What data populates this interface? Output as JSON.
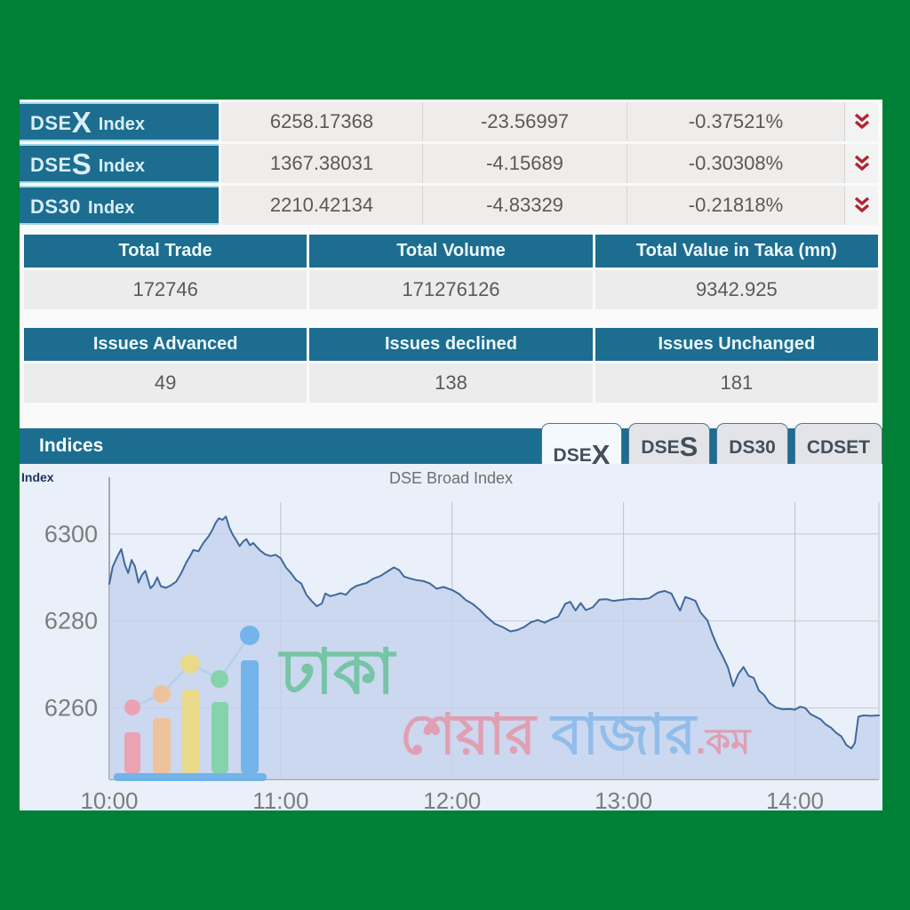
{
  "colors": {
    "page_bg": "#008036",
    "teal_header": "#1c6d90",
    "row_bg": "#eeedec",
    "value_text": "#5d5856",
    "arrow_red": "#b02430",
    "chart_bg": "#e9f0fa",
    "chart_line": "#41689b",
    "chart_area": "#c3d2ec"
  },
  "index_table": {
    "rows": [
      {
        "label_prefix": "DSE",
        "label_big": "X",
        "label_suffix": "Index",
        "value": "6258.17368",
        "change": "-23.56997",
        "change_pct": "-0.37521%"
      },
      {
        "label_prefix": "DSE",
        "label_big": "S",
        "label_suffix": "Index",
        "value": "1367.38031",
        "change": "-4.15689",
        "change_pct": "-0.30308%"
      },
      {
        "label_prefix": "DS30",
        "label_big": "",
        "label_suffix": "Index",
        "value": "2210.42134",
        "change": "-4.83329",
        "change_pct": "-0.21818%"
      }
    ]
  },
  "totals_table": {
    "headers": [
      "Total Trade",
      "Total Volume",
      "Total Value in Taka (mn)"
    ],
    "values": [
      "172746",
      "171276126",
      "9342.925"
    ]
  },
  "issues_table": {
    "headers": [
      "Issues Advanced",
      "Issues declined",
      "Issues Unchanged"
    ],
    "values": [
      "49",
      "138",
      "181"
    ]
  },
  "indices_panel": {
    "title": "Indices",
    "axis_caption": "Index",
    "chart_title": "DSE Broad Index",
    "tabs": [
      {
        "prefix": "DSE",
        "big": "X",
        "active": true
      },
      {
        "prefix": "DSE",
        "big": "S",
        "active": false
      },
      {
        "prefix": "DS30",
        "big": "",
        "active": false
      },
      {
        "prefix": "CDSET",
        "big": "",
        "active": false
      }
    ]
  },
  "watermark": {
    "line1": "ঢাকা",
    "word_share": "শেয়ার",
    "word_bazar": "বাজার",
    "word_dotcom": ".কম"
  },
  "chart_data": {
    "type": "area",
    "title": "DSE Broad Index",
    "x_ticks": [
      "10:00",
      "11:00",
      "12:00",
      "13:00",
      "14:00"
    ],
    "y_ticks": [
      6300,
      6280,
      6260
    ],
    "x_hours_range": [
      0,
      4.49
    ],
    "ylim": [
      6243.6,
      6307.3
    ],
    "grid": true,
    "legend": "none",
    "series": [
      {
        "name": "DSEX",
        "points": [
          [
            0.0,
            6288.5
          ],
          [
            0.02,
            6292.5
          ],
          [
            0.05,
            6295.0
          ],
          [
            0.07,
            6296.5
          ],
          [
            0.09,
            6293.0
          ],
          [
            0.11,
            6291.0
          ],
          [
            0.13,
            6294.0
          ],
          [
            0.15,
            6292.5
          ],
          [
            0.17,
            6288.8
          ],
          [
            0.19,
            6290.5
          ],
          [
            0.21,
            6291.5
          ],
          [
            0.24,
            6287.5
          ],
          [
            0.26,
            6288.3
          ],
          [
            0.28,
            6290.0
          ],
          [
            0.3,
            6288.0
          ],
          [
            0.33,
            6287.6
          ],
          [
            0.36,
            6288.2
          ],
          [
            0.39,
            6289.0
          ],
          [
            0.42,
            6291.0
          ],
          [
            0.45,
            6293.5
          ],
          [
            0.47,
            6294.8
          ],
          [
            0.49,
            6296.3
          ],
          [
            0.52,
            6296.0
          ],
          [
            0.55,
            6298.0
          ],
          [
            0.58,
            6299.5
          ],
          [
            0.6,
            6300.8
          ],
          [
            0.62,
            6302.5
          ],
          [
            0.64,
            6303.6
          ],
          [
            0.66,
            6303.2
          ],
          [
            0.68,
            6304.0
          ],
          [
            0.7,
            6301.5
          ],
          [
            0.72,
            6299.8
          ],
          [
            0.74,
            6298.6
          ],
          [
            0.76,
            6297.2
          ],
          [
            0.78,
            6298.2
          ],
          [
            0.8,
            6298.8
          ],
          [
            0.82,
            6297.4
          ],
          [
            0.84,
            6297.9
          ],
          [
            0.86,
            6297.0
          ],
          [
            0.88,
            6296.2
          ],
          [
            0.91,
            6295.3
          ],
          [
            0.94,
            6294.9
          ],
          [
            0.97,
            6295.2
          ],
          [
            1.0,
            6294.4
          ],
          [
            1.03,
            6292.3
          ],
          [
            1.06,
            6291.0
          ],
          [
            1.09,
            6289.4
          ],
          [
            1.12,
            6288.6
          ],
          [
            1.15,
            6286.0
          ],
          [
            1.18,
            6284.6
          ],
          [
            1.21,
            6283.4
          ],
          [
            1.24,
            6284.0
          ],
          [
            1.26,
            6286.3
          ],
          [
            1.29,
            6285.7
          ],
          [
            1.32,
            6286.0
          ],
          [
            1.35,
            6286.4
          ],
          [
            1.38,
            6286.0
          ],
          [
            1.41,
            6287.3
          ],
          [
            1.44,
            6288.0
          ],
          [
            1.47,
            6288.4
          ],
          [
            1.5,
            6288.7
          ],
          [
            1.54,
            6289.7
          ],
          [
            1.58,
            6290.3
          ],
          [
            1.62,
            6291.3
          ],
          [
            1.66,
            6292.3
          ],
          [
            1.69,
            6291.7
          ],
          [
            1.72,
            6290.2
          ],
          [
            1.75,
            6289.8
          ],
          [
            1.79,
            6289.4
          ],
          [
            1.83,
            6289.2
          ],
          [
            1.87,
            6288.6
          ],
          [
            1.91,
            6287.4
          ],
          [
            1.95,
            6287.8
          ],
          [
            2.0,
            6287.1
          ],
          [
            2.04,
            6286.2
          ],
          [
            2.08,
            6284.8
          ],
          [
            2.12,
            6283.9
          ],
          [
            2.16,
            6282.6
          ],
          [
            2.2,
            6281.0
          ],
          [
            2.25,
            6279.3
          ],
          [
            2.3,
            6278.5
          ],
          [
            2.34,
            6277.6
          ],
          [
            2.38,
            6277.9
          ],
          [
            2.42,
            6278.6
          ],
          [
            2.46,
            6279.7
          ],
          [
            2.5,
            6280.2
          ],
          [
            2.54,
            6279.6
          ],
          [
            2.58,
            6280.4
          ],
          [
            2.62,
            6281.0
          ],
          [
            2.66,
            6283.9
          ],
          [
            2.69,
            6284.4
          ],
          [
            2.72,
            6282.4
          ],
          [
            2.75,
            6284.1
          ],
          [
            2.78,
            6282.5
          ],
          [
            2.82,
            6283.1
          ],
          [
            2.86,
            6284.9
          ],
          [
            2.9,
            6285.0
          ],
          [
            2.94,
            6284.6
          ],
          [
            3.0,
            6284.9
          ],
          [
            3.05,
            6285.1
          ],
          [
            3.1,
            6285.0
          ],
          [
            3.15,
            6285.2
          ],
          [
            3.2,
            6286.5
          ],
          [
            3.24,
            6286.9
          ],
          [
            3.28,
            6286.3
          ],
          [
            3.31,
            6283.8
          ],
          [
            3.33,
            6282.4
          ],
          [
            3.36,
            6285.5
          ],
          [
            3.39,
            6285.1
          ],
          [
            3.42,
            6284.6
          ],
          [
            3.45,
            6281.9
          ],
          [
            3.49,
            6280.1
          ],
          [
            3.52,
            6276.8
          ],
          [
            3.55,
            6274.0
          ],
          [
            3.58,
            6271.8
          ],
          [
            3.61,
            6269.2
          ],
          [
            3.64,
            6265.0
          ],
          [
            3.67,
            6267.8
          ],
          [
            3.7,
            6269.4
          ],
          [
            3.73,
            6267.4
          ],
          [
            3.76,
            6266.9
          ],
          [
            3.79,
            6264.0
          ],
          [
            3.82,
            6263.0
          ],
          [
            3.85,
            6261.2
          ],
          [
            3.89,
            6260.1
          ],
          [
            3.93,
            6259.7
          ],
          [
            3.97,
            6259.8
          ],
          [
            4.0,
            6259.6
          ],
          [
            4.03,
            6260.3
          ],
          [
            4.06,
            6260.0
          ],
          [
            4.09,
            6258.6
          ],
          [
            4.12,
            6258.0
          ],
          [
            4.15,
            6257.4
          ],
          [
            4.18,
            6256.2
          ],
          [
            4.21,
            6255.5
          ],
          [
            4.24,
            6254.3
          ],
          [
            4.27,
            6253.5
          ],
          [
            4.3,
            6251.5
          ],
          [
            4.33,
            6250.7
          ],
          [
            4.35,
            6252.0
          ],
          [
            4.37,
            6258.0
          ],
          [
            4.4,
            6258.3
          ],
          [
            4.44,
            6258.2
          ],
          [
            4.49,
            6258.3
          ]
        ]
      }
    ]
  }
}
